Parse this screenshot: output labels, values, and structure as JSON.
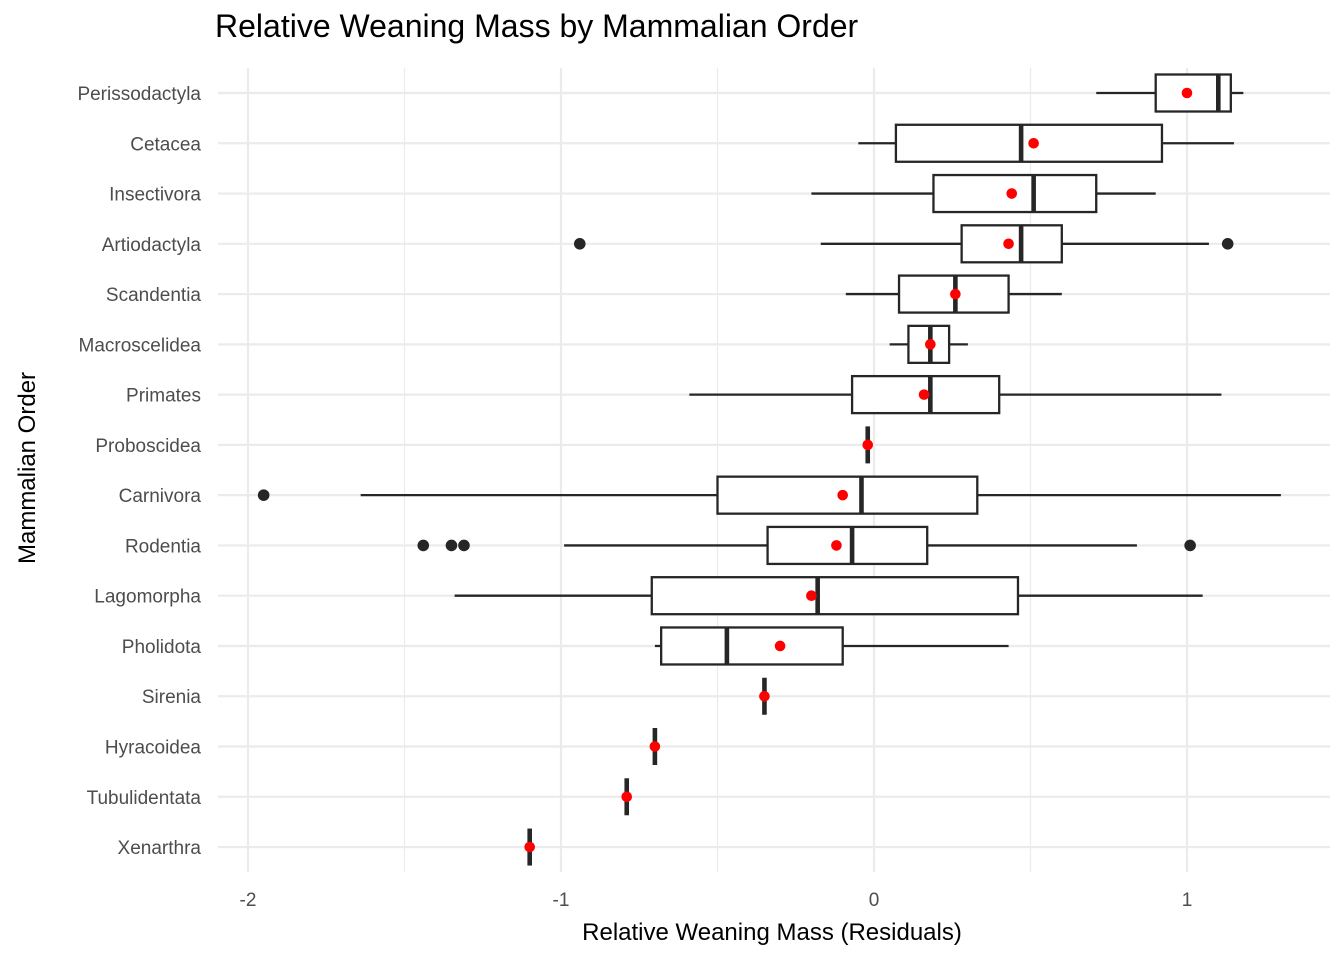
{
  "chart_data": {
    "type": "box",
    "title": "Relative Weaning Mass by Mammalian Order",
    "xlabel": "Relative Weaning Mass (Residuals)",
    "ylabel": "Mammalian Order",
    "xlim": [
      -2.1,
      1.46
    ],
    "x_ticks": [
      -2,
      -1,
      0,
      1
    ],
    "grid": true,
    "box_color": "#262626",
    "mean_color": "#ff0000",
    "grid_color": "#ebebeb",
    "mean_marker": "red dot = mean",
    "categories": [
      {
        "name": "Perissodactyla",
        "q1": 0.9,
        "median": 1.1,
        "q3": 1.14,
        "whisker_low": 0.71,
        "whisker_high": 1.18,
        "mean": 1.0,
        "outliers": []
      },
      {
        "name": "Cetacea",
        "q1": 0.07,
        "median": 0.47,
        "q3": 0.92,
        "whisker_low": -0.05,
        "whisker_high": 1.15,
        "mean": 0.51,
        "outliers": []
      },
      {
        "name": "Insectivora",
        "q1": 0.19,
        "median": 0.51,
        "q3": 0.71,
        "whisker_low": -0.2,
        "whisker_high": 0.9,
        "mean": 0.44,
        "outliers": []
      },
      {
        "name": "Artiodactyla",
        "q1": 0.28,
        "median": 0.47,
        "q3": 0.6,
        "whisker_low": -0.17,
        "whisker_high": 1.07,
        "mean": 0.43,
        "outliers": [
          -0.94,
          1.13
        ]
      },
      {
        "name": "Scandentia",
        "q1": 0.08,
        "median": 0.26,
        "q3": 0.43,
        "whisker_low": -0.09,
        "whisker_high": 0.6,
        "mean": 0.26,
        "outliers": []
      },
      {
        "name": "Macroscelidea",
        "q1": 0.11,
        "median": 0.18,
        "q3": 0.24,
        "whisker_low": 0.05,
        "whisker_high": 0.3,
        "mean": 0.18,
        "outliers": []
      },
      {
        "name": "Primates",
        "q1": -0.07,
        "median": 0.18,
        "q3": 0.4,
        "whisker_low": -0.59,
        "whisker_high": 1.11,
        "mean": 0.16,
        "outliers": []
      },
      {
        "name": "Proboscidea",
        "q1": -0.02,
        "median": -0.02,
        "q3": -0.02,
        "whisker_low": -0.02,
        "whisker_high": -0.02,
        "mean": -0.02,
        "outliers": []
      },
      {
        "name": "Carnivora",
        "q1": -0.5,
        "median": -0.04,
        "q3": 0.33,
        "whisker_low": -1.64,
        "whisker_high": 1.3,
        "mean": -0.1,
        "outliers": [
          -1.95
        ]
      },
      {
        "name": "Rodentia",
        "q1": -0.34,
        "median": -0.07,
        "q3": 0.17,
        "whisker_low": -0.99,
        "whisker_high": 0.84,
        "mean": -0.12,
        "outliers": [
          -1.44,
          -1.35,
          -1.31,
          1.01
        ]
      },
      {
        "name": "Lagomorpha",
        "q1": -0.71,
        "median": -0.18,
        "q3": 0.46,
        "whisker_low": -1.34,
        "whisker_high": 1.05,
        "mean": -0.2,
        "outliers": []
      },
      {
        "name": "Pholidota",
        "q1": -0.68,
        "median": -0.47,
        "q3": -0.1,
        "whisker_low": -0.7,
        "whisker_high": 0.43,
        "mean": -0.3,
        "outliers": []
      },
      {
        "name": "Sirenia",
        "q1": -0.35,
        "median": -0.35,
        "q3": -0.35,
        "whisker_low": -0.35,
        "whisker_high": -0.35,
        "mean": -0.35,
        "outliers": []
      },
      {
        "name": "Hyracoidea",
        "q1": -0.7,
        "median": -0.7,
        "q3": -0.7,
        "whisker_low": -0.7,
        "whisker_high": -0.7,
        "mean": -0.7,
        "outliers": []
      },
      {
        "name": "Tubulidentata",
        "q1": -0.79,
        "median": -0.79,
        "q3": -0.79,
        "whisker_low": -0.79,
        "whisker_high": -0.79,
        "mean": -0.79,
        "outliers": []
      },
      {
        "name": "Xenarthra",
        "q1": -1.1,
        "median": -1.1,
        "q3": -1.1,
        "whisker_low": -1.1,
        "whisker_high": -1.1,
        "mean": -1.1,
        "outliers": []
      }
    ]
  }
}
